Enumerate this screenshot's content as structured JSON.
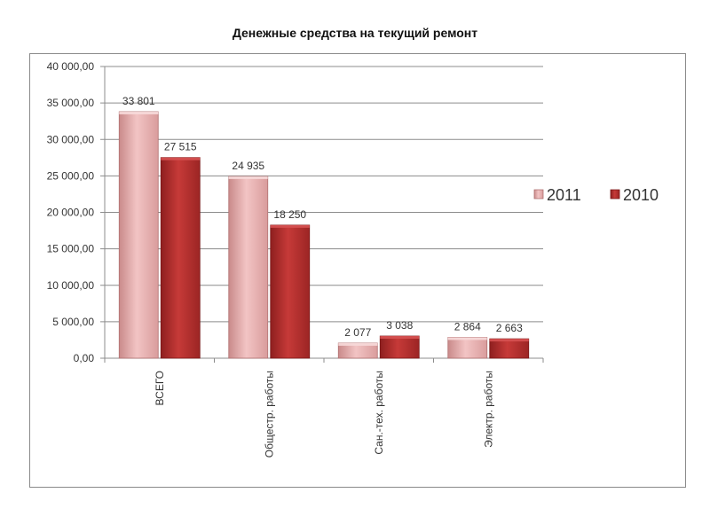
{
  "page": {
    "title": "Денежные средства на текущий ремонт"
  },
  "chart_data": {
    "type": "bar",
    "title": "Денежные средства на текущий ремонт",
    "categories": [
      "ВСЕГО",
      "Общестр. работы",
      "Сан.-тех. работы",
      "Электр. работы"
    ],
    "series": [
      {
        "name": "2011",
        "values": [
          33801,
          24935,
          2077,
          2864
        ],
        "labels": [
          "33 801",
          "24 935",
          "2 077",
          "2 864"
        ],
        "color": "#e8a9a9"
      },
      {
        "name": "2010",
        "values": [
          27515,
          18250,
          3038,
          2663
        ],
        "labels": [
          "27 515",
          "18 250",
          "3 038",
          "2 663"
        ],
        "color": "#b8302f"
      }
    ],
    "ylim": [
      0,
      40000
    ],
    "yticks": [
      0,
      5000,
      10000,
      15000,
      20000,
      25000,
      30000,
      35000,
      40000
    ],
    "ytick_labels": [
      "0,00",
      "5 000,00",
      "10 000,00",
      "15 000,00",
      "20 000,00",
      "25 000,00",
      "30 000,00",
      "35 000,00",
      "40 000,00"
    ],
    "grid": true,
    "legend_position": "right"
  }
}
